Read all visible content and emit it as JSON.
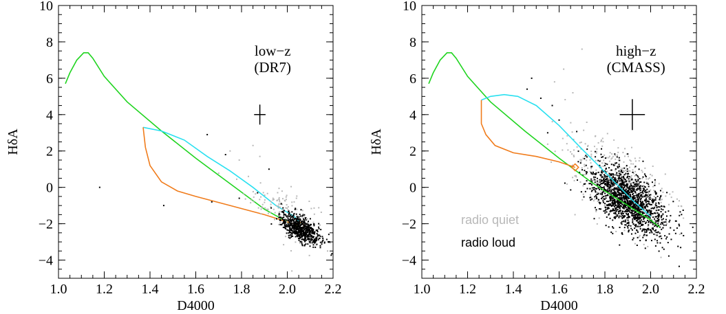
{
  "chart_data": [
    {
      "type": "scatter",
      "xlabel": "D4000",
      "ylabel": "HδA",
      "xlim": [
        1.0,
        2.2
      ],
      "ylim": [
        -5,
        10
      ],
      "xticks": [
        "1.0",
        "1.2",
        "1.4",
        "1.6",
        "1.8",
        "2.0",
        "2.2"
      ],
      "yticks": [
        "−4",
        "−2",
        "0",
        "2",
        "4",
        "6",
        "8",
        "10"
      ],
      "annotations": [
        "low−z",
        "(DR7)"
      ],
      "error_bar": {
        "x": 1.88,
        "y": 4.0,
        "dx": 0.025,
        "dy": 0.55
      },
      "clusters": {
        "radio_loud": {
          "center": [
            2.06,
            -2.3
          ],
          "sx": 0.045,
          "sy": 0.45,
          "n": 650,
          "color": "#000000"
        },
        "radio_quiet": {
          "center": [
            1.98,
            -1.2
          ],
          "sx": 0.08,
          "sy": 0.9,
          "n": 130,
          "color": "#b8b8b8"
        }
      },
      "outliers": {
        "radio_loud": [
          [
            1.18,
            0.0
          ],
          [
            1.46,
            -1.0
          ],
          [
            1.65,
            2.9
          ],
          [
            1.67,
            -0.8
          ],
          [
            1.73,
            1.8
          ],
          [
            1.79,
            -0.6
          ],
          [
            1.87,
            -0.3
          ],
          [
            1.92,
            1.0
          ]
        ],
        "radio_quiet": [
          [
            1.75,
            2.0
          ],
          [
            1.79,
            1.5
          ],
          [
            1.83,
            0.6
          ],
          [
            1.88,
            1.7
          ],
          [
            1.85,
            2.3
          ],
          [
            2.02,
            -4.6
          ]
        ]
      },
      "series": [
        {
          "color": "#1fd41f",
          "points": [
            [
              1.03,
              5.7
            ],
            [
              1.05,
              6.3
            ],
            [
              1.08,
              7.0
            ],
            [
              1.11,
              7.4
            ],
            [
              1.13,
              7.4
            ],
            [
              1.15,
              7.1
            ],
            [
              1.2,
              6.1
            ],
            [
              1.3,
              4.7
            ],
            [
              1.45,
              3.1
            ],
            [
              1.6,
              1.6
            ],
            [
              1.75,
              0.2
            ],
            [
              1.9,
              -1.2
            ],
            [
              2.0,
              -1.9
            ],
            [
              2.06,
              -2.2
            ]
          ]
        },
        {
          "color": "#29e0f0",
          "points": [
            [
              1.37,
              3.3
            ],
            [
              1.45,
              3.1
            ],
            [
              1.55,
              2.6
            ],
            [
              1.65,
              1.7
            ],
            [
              1.75,
              0.9
            ],
            [
              1.85,
              0.0
            ],
            [
              1.95,
              -1.0
            ],
            [
              2.03,
              -1.6
            ],
            [
              2.06,
              -2.0
            ]
          ]
        },
        {
          "color": "#f07b1a",
          "points": [
            [
              1.37,
              3.3
            ],
            [
              1.38,
              2.2
            ],
            [
              1.4,
              1.2
            ],
            [
              1.45,
              0.3
            ],
            [
              1.52,
              -0.2
            ],
            [
              1.6,
              -0.5
            ],
            [
              1.75,
              -1.0
            ],
            [
              1.9,
              -1.5
            ],
            [
              2.0,
              -1.9
            ],
            [
              2.05,
              -2.1
            ]
          ]
        }
      ],
      "marker": {
        "x": 2.06,
        "y": -2.1
      }
    },
    {
      "type": "scatter",
      "xlabel": "D4000",
      "ylabel": "HδA",
      "xlim": [
        1.0,
        2.2
      ],
      "ylim": [
        -5,
        10
      ],
      "xticks": [
        "1.0",
        "1.2",
        "1.4",
        "1.6",
        "1.8",
        "2.0",
        "2.2"
      ],
      "yticks": [
        "−4",
        "−2",
        "0",
        "2",
        "4",
        "6",
        "8",
        "10"
      ],
      "annotations": [
        "high−z",
        "(CMASS)"
      ],
      "legend": [
        {
          "label": "radio quiet",
          "color": "#b8b8b8"
        },
        {
          "label": "radio loud",
          "color": "#000000"
        }
      ],
      "error_bar": {
        "x": 1.92,
        "y": 4.0,
        "dx": 0.055,
        "dy": 0.85
      },
      "clusters": {
        "radio_loud": {
          "center": [
            1.9,
            -0.7
          ],
          "sx": 0.085,
          "sy": 1.05,
          "n": 1500,
          "color": "#000000"
        },
        "radio_quiet": {
          "center": [
            1.87,
            0.1
          ],
          "sx": 0.11,
          "sy": 1.4,
          "n": 450,
          "color": "#b8b8b8"
        }
      },
      "outliers": {
        "radio_loud": [
          [
            1.46,
            5.4
          ],
          [
            1.48,
            6.0
          ],
          [
            1.52,
            4.9
          ],
          [
            1.57,
            4.5
          ],
          [
            1.6,
            3.7
          ],
          [
            1.55,
            3.0
          ]
        ],
        "radio_quiet": [
          [
            1.7,
            7.6
          ],
          [
            1.58,
            5.8
          ],
          [
            1.62,
            6.5
          ],
          [
            1.66,
            5.2
          ]
        ]
      },
      "series": [
        {
          "color": "#1fd41f",
          "points": [
            [
              1.03,
              5.7
            ],
            [
              1.05,
              6.3
            ],
            [
              1.08,
              7.0
            ],
            [
              1.11,
              7.4
            ],
            [
              1.13,
              7.4
            ],
            [
              1.15,
              7.1
            ],
            [
              1.2,
              6.1
            ],
            [
              1.3,
              4.7
            ],
            [
              1.45,
              3.1
            ],
            [
              1.6,
              1.6
            ],
            [
              1.75,
              0.2
            ],
            [
              1.9,
              -1.0
            ],
            [
              2.0,
              -1.8
            ],
            [
              2.04,
              -2.2
            ]
          ]
        },
        {
          "color": "#29e0f0",
          "points": [
            [
              1.26,
              4.8
            ],
            [
              1.3,
              5.0
            ],
            [
              1.36,
              5.1
            ],
            [
              1.42,
              5.0
            ],
            [
              1.5,
              4.5
            ],
            [
              1.6,
              3.4
            ],
            [
              1.7,
              2.1
            ],
            [
              1.78,
              1.1
            ],
            [
              1.85,
              0.2
            ],
            [
              1.92,
              -0.7
            ],
            [
              2.0,
              -1.6
            ]
          ]
        },
        {
          "color": "#f07b1a",
          "points": [
            [
              1.26,
              4.8
            ],
            [
              1.26,
              3.5
            ],
            [
              1.28,
              2.9
            ],
            [
              1.32,
              2.3
            ],
            [
              1.4,
              1.9
            ],
            [
              1.5,
              1.7
            ],
            [
              1.6,
              1.4
            ],
            [
              1.67,
              1.1
            ]
          ]
        }
      ],
      "marker": {
        "x": 1.67,
        "y": 1.1
      }
    }
  ]
}
